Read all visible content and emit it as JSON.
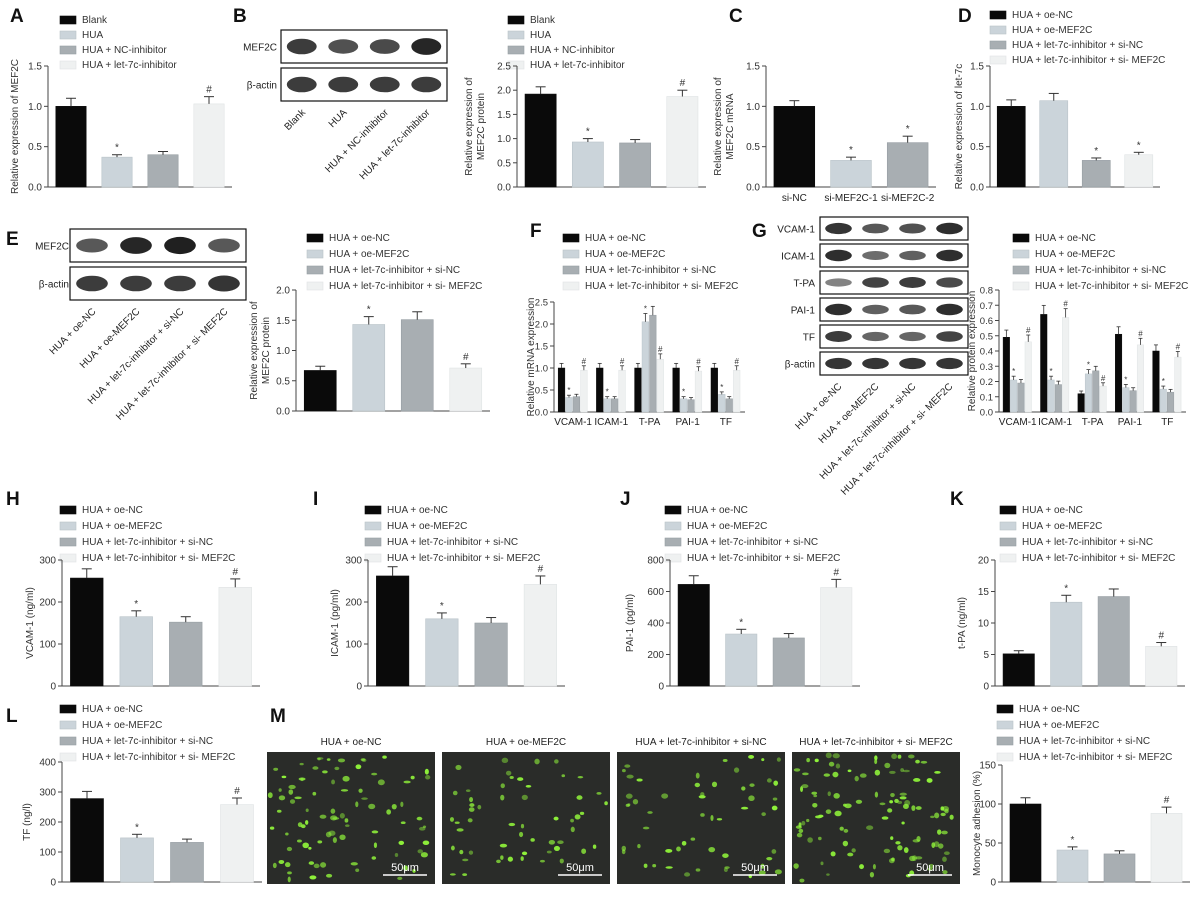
{
  "colors": {
    "series": [
      "#0a0a0a",
      "#cbd4da",
      "#a8aeb2",
      "#eff1f1"
    ],
    "fluorescence_background": "#2a2c29",
    "fluorescence_cells": "#8ff23a",
    "blot_bands": "#141414"
  },
  "panels": {
    "A": {
      "letter": "A",
      "legend": [
        "Blank",
        "HUA",
        "HUA + NC-inhibitor",
        "HUA + let-7c-inhibitor"
      ],
      "ylabel": "Relative expression of MEF2C",
      "yticks": [
        "0.0",
        "0.5",
        "1.0",
        "1.5"
      ],
      "ylim": [
        0,
        1.5
      ],
      "values": [
        1.0,
        0.37,
        0.4,
        1.03
      ],
      "errors": [
        0.1,
        0.03,
        0.04,
        0.09
      ],
      "marks": [
        "",
        "*",
        "",
        "#"
      ]
    },
    "B": {
      "letter": "B",
      "blot_rows": [
        "MEF2C",
        "β-actin"
      ],
      "blot_lanes": [
        "Blank",
        "HUA",
        "HUA + NC-inhibitor",
        "HUA + let-7c-inhibitor"
      ],
      "legend": [
        "Blank",
        "HUA",
        "HUA + NC-inhibitor",
        "HUA + let-7c-inhibitor"
      ],
      "ylabel_lines": [
        "Relative expression of",
        "MEF2C protein"
      ],
      "yticks": [
        "0.0",
        "0.5",
        "1.0",
        "1.5",
        "2.0",
        "2.5"
      ],
      "ylim": [
        0,
        2.5
      ],
      "values": [
        1.92,
        0.93,
        0.91,
        1.87
      ],
      "errors": [
        0.15,
        0.07,
        0.07,
        0.13
      ],
      "marks": [
        "",
        "*",
        "",
        "#"
      ]
    },
    "C": {
      "letter": "C",
      "categories": [
        "si-NC",
        "si-MEF2C-1",
        "si-MEF2C-2"
      ],
      "ylabel_lines": [
        "Relative expression of",
        "MEF2C mRNA"
      ],
      "yticks": [
        "0.0",
        "0.5",
        "1.0",
        "1.5"
      ],
      "ylim": [
        0,
        1.5
      ],
      "values": [
        1.0,
        0.33,
        0.55
      ],
      "errors": [
        0.07,
        0.04,
        0.08
      ],
      "marks": [
        "",
        "*",
        "*"
      ]
    },
    "D": {
      "letter": "D",
      "legend": [
        "HUA + oe-NC",
        "HUA + oe-MEF2C",
        "HUA + let-7c-inhibitor + si-NC",
        "HUA + let-7c-inhibitor + si- MEF2C"
      ],
      "ylabel": "Relative expression of let-7c",
      "yticks": [
        "0.0",
        "0.5",
        "1.0",
        "1.5"
      ],
      "ylim": [
        0,
        1.5
      ],
      "values": [
        1.0,
        1.07,
        0.33,
        0.4
      ],
      "errors": [
        0.08,
        0.09,
        0.03,
        0.03
      ],
      "marks": [
        "",
        "",
        "*",
        "*"
      ]
    },
    "E": {
      "letter": "E",
      "blot_rows": [
        "MEF2C",
        "β-actin"
      ],
      "blot_lanes": [
        "HUA + oe-NC",
        "HUA + oe-MEF2C",
        "HUA + let-7c-inhibitor + si-NC",
        "HUA + let-7c-inhibitor + si- MEF2C"
      ],
      "legend": [
        "HUA + oe-NC",
        "HUA + oe-MEF2C",
        "HUA + let-7c-inhibitor + si-NC",
        "HUA + let-7c-inhibitor + si- MEF2C"
      ],
      "ylabel_lines": [
        "Relative expression of",
        "MEF2C protein"
      ],
      "yticks": [
        "0.0",
        "0.5",
        "1.0",
        "1.5",
        "2.0"
      ],
      "ylim": [
        0,
        2.0
      ],
      "values": [
        0.67,
        1.43,
        1.51,
        0.71
      ],
      "errors": [
        0.07,
        0.13,
        0.13,
        0.07
      ],
      "marks": [
        "",
        "*",
        "",
        "#"
      ]
    },
    "F": {
      "letter": "F",
      "legend": [
        "HUA + oe-NC",
        "HUA + oe-MEF2C",
        "HUA + let-7c-inhibitor + si-NC",
        "HUA + let-7c-inhibitor + si- MEF2C"
      ],
      "ylabel": "Relative mRNA expression",
      "categories": [
        "VCAM-1",
        "ICAM-1",
        "T-PA",
        "PAI-1",
        "TF"
      ],
      "yticks": [
        "0.0",
        "0.5",
        "1.0",
        "1.5",
        "2.0",
        "2.5"
      ],
      "ylim": [
        0,
        2.5
      ],
      "series_values": [
        [
          1.0,
          1.0,
          1.0,
          1.0,
          1.0
        ],
        [
          0.33,
          0.3,
          2.05,
          0.3,
          0.4
        ],
        [
          0.35,
          0.3,
          2.2,
          0.28,
          0.3
        ],
        [
          0.95,
          0.95,
          1.2,
          0.93,
          0.95
        ]
      ],
      "marks": [
        [
          "",
          "",
          "",
          "",
          ""
        ],
        [
          "*",
          "*",
          "*",
          "*",
          "*"
        ],
        [
          "",
          "",
          "",
          "",
          ""
        ],
        [
          "#",
          "#",
          "#",
          "#",
          "#"
        ]
      ]
    },
    "G": {
      "letter": "G",
      "blot_rows": [
        "VCAM-1",
        "ICAM-1",
        "T-PA",
        "PAI-1",
        "TF",
        "β-actin"
      ],
      "blot_lanes": [
        "HUA + oe-NC",
        "HUA + oe-MEF2C",
        "HUA + let-7c-inhibitor + si-NC",
        "HUA + let-7c-inhibitor + si- MEF2C"
      ],
      "legend": [
        "HUA + oe-NC",
        "HUA + oe-MEF2C",
        "HUA + let-7c-inhibitor + si-NC",
        "HUA + let-7c-inhibitor + si- MEF2C"
      ],
      "ylabel": "Relative protein expression",
      "categories": [
        "VCAM-1",
        "ICAM-1",
        "T-PA",
        "PAI-1",
        "TF"
      ],
      "yticks": [
        "0.0",
        "0.1",
        "0.2",
        "0.3",
        "0.4",
        "0.5",
        "0.6",
        "0.7",
        "0.8"
      ],
      "ylim": [
        0,
        0.8
      ],
      "series_values": [
        [
          0.49,
          0.64,
          0.12,
          0.51,
          0.4
        ],
        [
          0.21,
          0.21,
          0.25,
          0.16,
          0.15
        ],
        [
          0.19,
          0.18,
          0.27,
          0.14,
          0.13
        ],
        [
          0.46,
          0.62,
          0.17,
          0.44,
          0.36
        ]
      ],
      "marks": [
        [
          "",
          "",
          "",
          "",
          ""
        ],
        [
          "*",
          "*",
          "*",
          "*",
          "*"
        ],
        [
          "",
          "",
          "",
          "",
          ""
        ],
        [
          "#",
          "#",
          "#",
          "#",
          "#"
        ]
      ]
    },
    "H": {
      "letter": "H",
      "legend": [
        "HUA + oe-NC",
        "HUA + oe-MEF2C",
        "HUA + let-7c-inhibitor + si-NC",
        "HUA + let-7c-inhibitor + si- MEF2C"
      ],
      "ylabel": "VCAM-1 (ng/ml)",
      "yticks": [
        "0",
        "100",
        "200",
        "300"
      ],
      "ylim": [
        0,
        300
      ],
      "values": [
        257,
        165,
        152,
        235
      ],
      "errors": [
        22,
        14,
        13,
        20
      ],
      "marks": [
        "",
        "*",
        "",
        "#"
      ]
    },
    "I": {
      "letter": "I",
      "legend": [
        "HUA + oe-NC",
        "HUA + oe-MEF2C",
        "HUA + let-7c-inhibitor + si-NC",
        "HUA + let-7c-inhibitor + si- MEF2C"
      ],
      "ylabel": "ICAM-1 (pg/ml)",
      "yticks": [
        "0",
        "100",
        "200",
        "300"
      ],
      "ylim": [
        0,
        300
      ],
      "values": [
        262,
        160,
        150,
        242
      ],
      "errors": [
        22,
        14,
        13,
        20
      ],
      "marks": [
        "",
        "*",
        "",
        "#"
      ]
    },
    "J": {
      "letter": "J",
      "legend": [
        "HUA + oe-NC",
        "HUA + oe-MEF2C",
        "HUA + let-7c-inhibitor + si-NC",
        "HUA + let-7c-inhibitor + si- MEF2C"
      ],
      "ylabel": "PAI-1 (pg/ml)",
      "yticks": [
        "0",
        "200",
        "400",
        "600",
        "800"
      ],
      "ylim": [
        0,
        800
      ],
      "values": [
        645,
        330,
        305,
        625
      ],
      "errors": [
        55,
        30,
        28,
        52
      ],
      "marks": [
        "",
        "*",
        "",
        "#"
      ]
    },
    "K": {
      "letter": "K",
      "legend": [
        "HUA + oe-NC",
        "HUA + oe-MEF2C",
        "HUA + let-7c-inhibitor + si-NC",
        "HUA + let-7c-inhibitor + si- MEF2C"
      ],
      "ylabel": "t-PA (ng/ml)",
      "yticks": [
        "0",
        "5",
        "10",
        "15",
        "20"
      ],
      "ylim": [
        0,
        20
      ],
      "values": [
        5.1,
        13.3,
        14.2,
        6.3
      ],
      "errors": [
        0.5,
        1.1,
        1.2,
        0.6
      ],
      "marks": [
        "",
        "*",
        "",
        "#"
      ]
    },
    "L": {
      "letter": "L",
      "legend": [
        "HUA + oe-NC",
        "HUA + oe-MEF2C",
        "HUA + let-7c-inhibitor + si-NC",
        "HUA + let-7c-inhibitor + si- MEF2C"
      ],
      "ylabel": "TF (ng/l)",
      "yticks": [
        "0",
        "100",
        "200",
        "300",
        "400"
      ],
      "ylim": [
        0,
        400
      ],
      "values": [
        278,
        147,
        132,
        258
      ],
      "errors": [
        24,
        12,
        11,
        22
      ],
      "marks": [
        "",
        "*",
        "",
        "#"
      ]
    },
    "M": {
      "letter": "M",
      "image_titles": [
        "HUA + oe-NC",
        "HUA + oe-MEF2C",
        "HUA + let-7c-inhibitor + si-NC",
        "HUA + let-7c-inhibitor + si- MEF2C"
      ],
      "scale_bar_label": "50μm",
      "legend": [
        "HUA + oe-NC",
        "HUA + oe-MEF2C",
        "HUA + let-7c-inhibitor + si-NC",
        "HUA + let-7c-inhibitor + si- MEF2C"
      ],
      "ylabel": "Monocyte adhesion (%)",
      "yticks": [
        "0",
        "50",
        "100",
        "150"
      ],
      "ylim": [
        0,
        150
      ],
      "values": [
        100,
        41,
        36,
        88
      ],
      "errors": [
        8,
        4,
        4,
        8
      ],
      "marks": [
        "",
        "*",
        "",
        "#"
      ]
    }
  },
  "chart_data": [
    {
      "panel": "A",
      "type": "bar",
      "categories": [
        "Blank",
        "HUA",
        "HUA + NC-inhibitor",
        "HUA + let-7c-inhibitor"
      ],
      "values": [
        1.0,
        0.37,
        0.4,
        1.03
      ],
      "ylabel": "Relative expression of MEF2C",
      "ylim": [
        0,
        1.5
      ]
    },
    {
      "panel": "B",
      "type": "bar",
      "categories": [
        "Blank",
        "HUA",
        "HUA + NC-inhibitor",
        "HUA + let-7c-inhibitor"
      ],
      "values": [
        1.92,
        0.93,
        0.91,
        1.87
      ],
      "ylabel": "Relative expression of MEF2C protein",
      "ylim": [
        0,
        2.5
      ]
    },
    {
      "panel": "C",
      "type": "bar",
      "categories": [
        "si-NC",
        "si-MEF2C-1",
        "si-MEF2C-2"
      ],
      "values": [
        1.0,
        0.33,
        0.55
      ],
      "ylabel": "Relative expression of MEF2C mRNA",
      "ylim": [
        0,
        1.5
      ]
    },
    {
      "panel": "D",
      "type": "bar",
      "categories": [
        "HUA + oe-NC",
        "HUA + oe-MEF2C",
        "HUA + let-7c-inhibitor + si-NC",
        "HUA + let-7c-inhibitor + si- MEF2C"
      ],
      "values": [
        1.0,
        1.07,
        0.33,
        0.4
      ],
      "ylabel": "Relative expression of let-7c",
      "ylim": [
        0,
        1.5
      ]
    },
    {
      "panel": "E",
      "type": "bar",
      "categories": [
        "HUA + oe-NC",
        "HUA + oe-MEF2C",
        "HUA + let-7c-inhibitor + si-NC",
        "HUA + let-7c-inhibitor + si- MEF2C"
      ],
      "values": [
        0.67,
        1.43,
        1.51,
        0.71
      ],
      "ylabel": "Relative expression of MEF2C protein",
      "ylim": [
        0,
        2.0
      ]
    },
    {
      "panel": "F",
      "type": "bar",
      "categories": [
        "VCAM-1",
        "ICAM-1",
        "T-PA",
        "PAI-1",
        "TF"
      ],
      "series": [
        {
          "name": "HUA + oe-NC",
          "values": [
            1.0,
            1.0,
            1.0,
            1.0,
            1.0
          ]
        },
        {
          "name": "HUA + oe-MEF2C",
          "values": [
            0.33,
            0.3,
            2.05,
            0.3,
            0.4
          ]
        },
        {
          "name": "HUA + let-7c-inhibitor + si-NC",
          "values": [
            0.35,
            0.3,
            2.2,
            0.28,
            0.3
          ]
        },
        {
          "name": "HUA + let-7c-inhibitor + si- MEF2C",
          "values": [
            0.95,
            0.95,
            1.2,
            0.93,
            0.95
          ]
        }
      ],
      "ylabel": "Relative mRNA expression",
      "ylim": [
        0,
        2.5
      ]
    },
    {
      "panel": "G",
      "type": "bar",
      "categories": [
        "VCAM-1",
        "ICAM-1",
        "T-PA",
        "PAI-1",
        "TF"
      ],
      "series": [
        {
          "name": "HUA + oe-NC",
          "values": [
            0.49,
            0.64,
            0.12,
            0.51,
            0.4
          ]
        },
        {
          "name": "HUA + oe-MEF2C",
          "values": [
            0.21,
            0.21,
            0.25,
            0.16,
            0.15
          ]
        },
        {
          "name": "HUA + let-7c-inhibitor + si-NC",
          "values": [
            0.19,
            0.18,
            0.27,
            0.14,
            0.13
          ]
        },
        {
          "name": "HUA + let-7c-inhibitor + si- MEF2C",
          "values": [
            0.46,
            0.62,
            0.17,
            0.44,
            0.36
          ]
        }
      ],
      "ylabel": "Relative protein expression",
      "ylim": [
        0,
        0.8
      ]
    },
    {
      "panel": "H",
      "type": "bar",
      "categories": [
        "HUA + oe-NC",
        "HUA + oe-MEF2C",
        "HUA + let-7c-inhibitor + si-NC",
        "HUA + let-7c-inhibitor + si- MEF2C"
      ],
      "values": [
        257,
        165,
        152,
        235
      ],
      "ylabel": "VCAM-1 (ng/ml)",
      "ylim": [
        0,
        300
      ]
    },
    {
      "panel": "I",
      "type": "bar",
      "categories": [
        "HUA + oe-NC",
        "HUA + oe-MEF2C",
        "HUA + let-7c-inhibitor + si-NC",
        "HUA + let-7c-inhibitor + si- MEF2C"
      ],
      "values": [
        262,
        160,
        150,
        242
      ],
      "ylabel": "ICAM-1 (pg/ml)",
      "ylim": [
        0,
        300
      ]
    },
    {
      "panel": "J",
      "type": "bar",
      "categories": [
        "HUA + oe-NC",
        "HUA + oe-MEF2C",
        "HUA + let-7c-inhibitor + si-NC",
        "HUA + let-7c-inhibitor + si- MEF2C"
      ],
      "values": [
        645,
        330,
        305,
        625
      ],
      "ylabel": "PAI-1 (pg/ml)",
      "ylim": [
        0,
        800
      ]
    },
    {
      "panel": "K",
      "type": "bar",
      "categories": [
        "HUA + oe-NC",
        "HUA + oe-MEF2C",
        "HUA + let-7c-inhibitor + si-NC",
        "HUA + let-7c-inhibitor + si- MEF2C"
      ],
      "values": [
        5.1,
        13.3,
        14.2,
        6.3
      ],
      "ylabel": "t-PA (ng/ml)",
      "ylim": [
        0,
        20
      ]
    },
    {
      "panel": "L",
      "type": "bar",
      "categories": [
        "HUA + oe-NC",
        "HUA + oe-MEF2C",
        "HUA + let-7c-inhibitor + si-NC",
        "HUA + let-7c-inhibitor + si- MEF2C"
      ],
      "values": [
        278,
        147,
        132,
        258
      ],
      "ylabel": "TF (ng/l)",
      "ylim": [
        0,
        400
      ]
    },
    {
      "panel": "M",
      "type": "bar",
      "categories": [
        "HUA + oe-NC",
        "HUA + oe-MEF2C",
        "HUA + let-7c-inhibitor + si-NC",
        "HUA + let-7c-inhibitor + si- MEF2C"
      ],
      "values": [
        100,
        41,
        36,
        88
      ],
      "ylabel": "Monocyte adhesion (%)",
      "ylim": [
        0,
        150
      ]
    }
  ]
}
